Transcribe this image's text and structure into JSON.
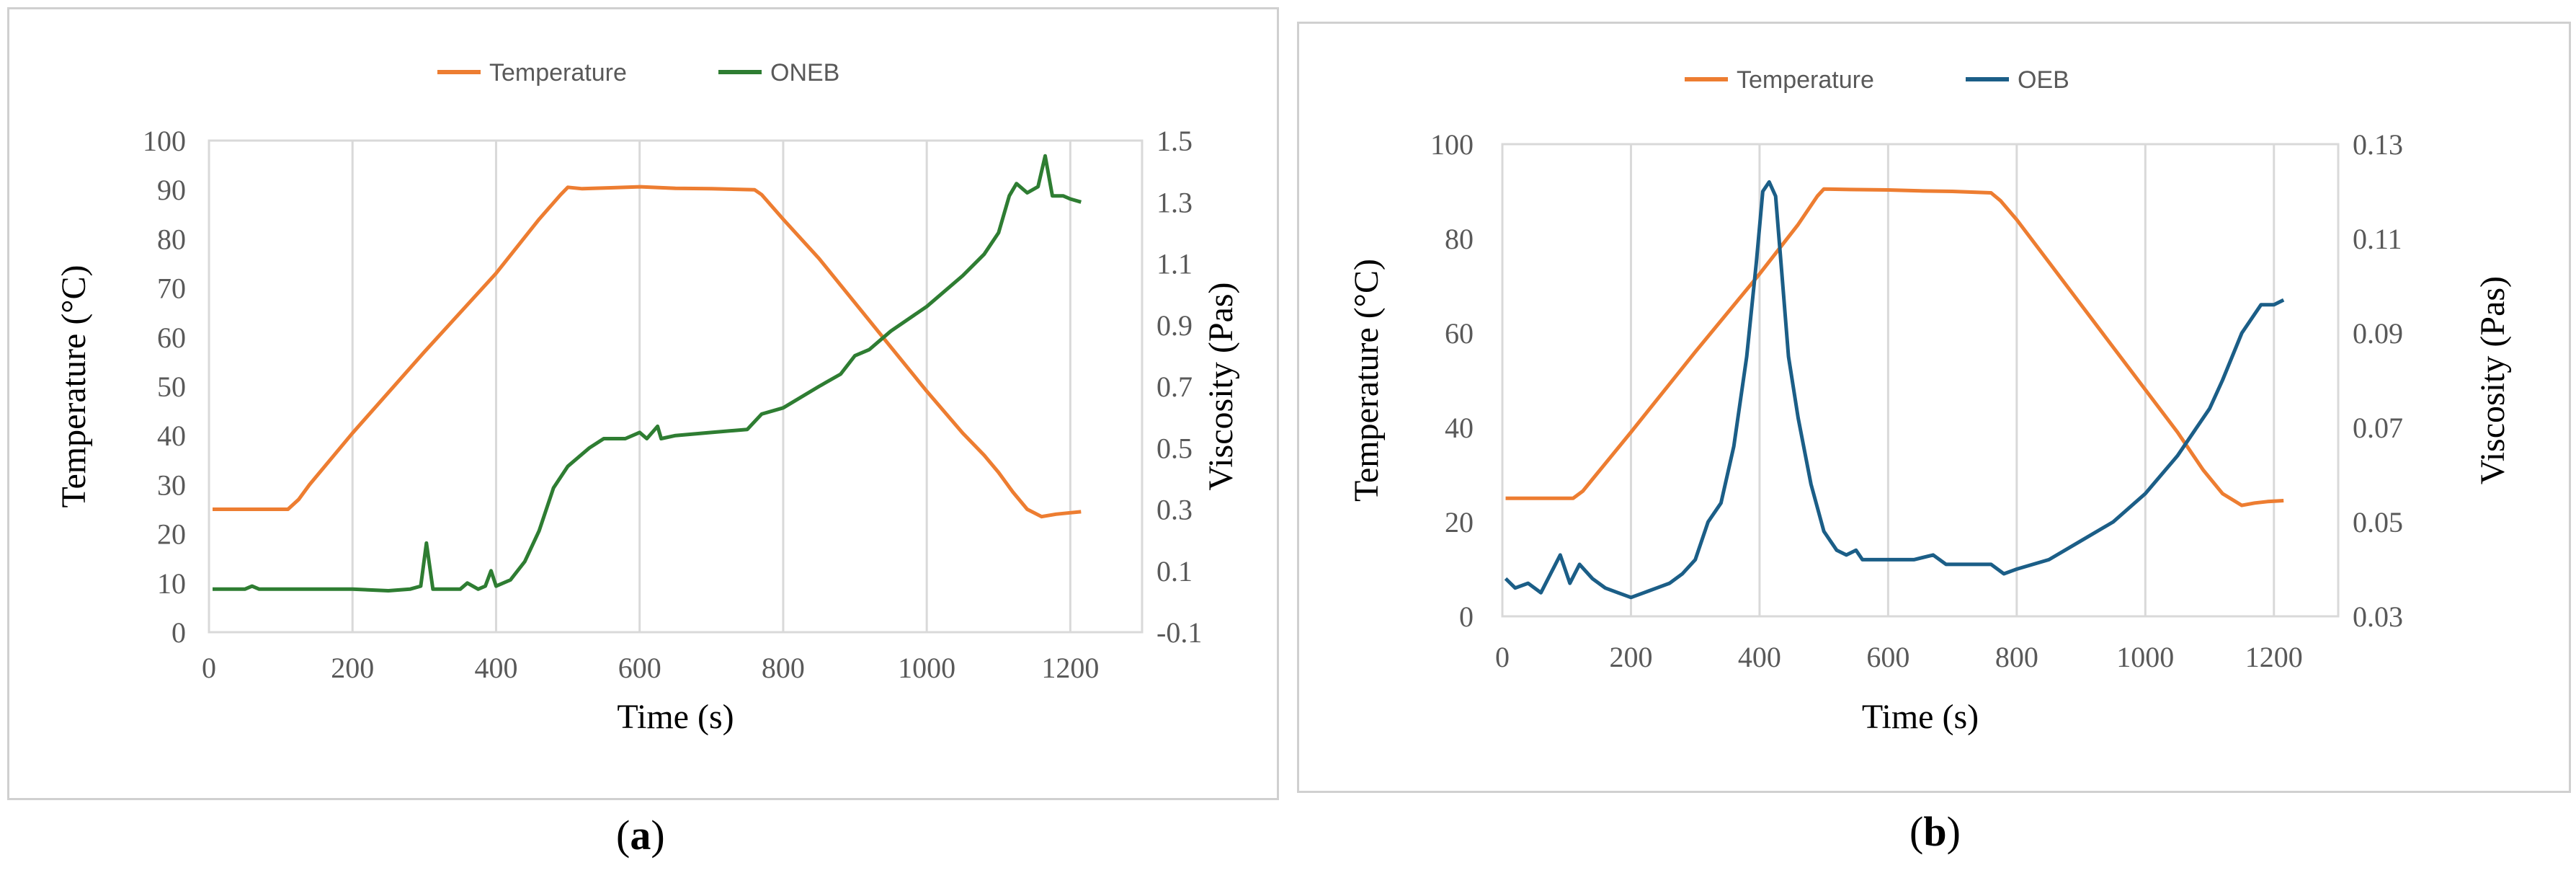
{
  "panels": [
    {
      "label": "a",
      "legend": [
        "Temperature",
        "ONEB"
      ],
      "colors": {
        "temperature": "#ED7D31",
        "viscosity": "#2E7D32"
      },
      "chart_data": {
        "type": "line",
        "xlabel": "Time (s)",
        "ylabel": "Temperature (°C)",
        "y2label": "Viscosity (Pas)",
        "xlim": [
          0,
          1300
        ],
        "ylim": [
          0,
          100
        ],
        "y2lim": [
          -0.1,
          1.5
        ],
        "xticks": [
          "0",
          "200",
          "400",
          "600",
          "800",
          "1000",
          "1200"
        ],
        "yticks": [
          "0",
          "10",
          "20",
          "30",
          "40",
          "50",
          "60",
          "70",
          "80",
          "90",
          "100"
        ],
        "y2ticks": [
          "-0.1",
          "0.1",
          "0.3",
          "0.5",
          "0.7",
          "0.9",
          "1.1",
          "1.3",
          "1.5"
        ],
        "grid": "vertical",
        "legend_position": "top-center",
        "series": [
          {
            "name": "Temperature",
            "axis": "left",
            "x": [
              5,
              60,
              110,
              125,
              140,
              200,
              300,
              400,
              460,
              490,
              500,
              520,
              560,
              600,
              650,
              700,
              760,
              770,
              800,
              850,
              900,
              950,
              1000,
              1050,
              1080,
              1100,
              1120,
              1140,
              1160,
              1180,
              1200,
              1215
            ],
            "y": [
              25,
              25,
              25,
              27,
              30,
              40.5,
              57,
              73,
              84,
              89,
              90.5,
              90.2,
              90.4,
              90.6,
              90.3,
              90.2,
              90,
              89,
              84,
              76,
              67,
              58,
              49,
              40.5,
              36,
              32.5,
              28.5,
              25,
              23.5,
              24,
              24.3,
              24.5
            ]
          },
          {
            "name": "ONEB",
            "axis": "right",
            "x": [
              5,
              50,
              60,
              70,
              100,
              150,
              200,
              250,
              280,
              295,
              303,
              312,
              330,
              350,
              360,
              375,
              385,
              393,
              400,
              420,
              440,
              460,
              480,
              500,
              530,
              550,
              580,
              600,
              610,
              625,
              630,
              650,
              700,
              750,
              770,
              800,
              850,
              880,
              900,
              920,
              950,
              1000,
              1050,
              1080,
              1100,
              1115,
              1125,
              1140,
              1155,
              1165,
              1175,
              1190,
              1200,
              1215
            ],
            "y": [
              0.04,
              0.04,
              0.05,
              0.04,
              0.04,
              0.04,
              0.04,
              0.035,
              0.04,
              0.05,
              0.19,
              0.04,
              0.04,
              0.04,
              0.06,
              0.04,
              0.05,
              0.1,
              0.05,
              0.07,
              0.13,
              0.23,
              0.37,
              0.44,
              0.5,
              0.53,
              0.53,
              0.55,
              0.53,
              0.57,
              0.53,
              0.54,
              0.55,
              0.56,
              0.61,
              0.63,
              0.7,
              0.74,
              0.8,
              0.82,
              0.88,
              0.96,
              1.06,
              1.13,
              1.2,
              1.32,
              1.36,
              1.33,
              1.35,
              1.45,
              1.32,
              1.32,
              1.31,
              1.3
            ]
          }
        ]
      }
    },
    {
      "label": "b",
      "legend": [
        "Temperature",
        "OEB"
      ],
      "colors": {
        "temperature": "#ED7D31",
        "viscosity": "#1B5E87"
      },
      "chart_data": {
        "type": "line",
        "xlabel": "Time (s)",
        "ylabel": "Temperature (°C)",
        "y2label": "Viscosity (Pas)",
        "xlim": [
          0,
          1300
        ],
        "ylim": [
          0,
          100
        ],
        "y2lim": [
          0.03,
          0.13
        ],
        "xticks": [
          "0",
          "200",
          "400",
          "600",
          "800",
          "1000",
          "1200"
        ],
        "yticks": [
          "0",
          "20",
          "40",
          "60",
          "80",
          "100"
        ],
        "y2ticks": [
          "0.03",
          "0.05",
          "0.07",
          "0.09",
          "0.11",
          "0.13"
        ],
        "grid": "vertical",
        "legend_position": "top-center",
        "series": [
          {
            "name": "Temperature",
            "axis": "left",
            "x": [
              5,
              60,
              110,
              125,
              140,
              200,
              300,
              400,
              460,
              490,
              500,
              540,
              600,
              650,
              700,
              760,
              775,
              800,
              850,
              900,
              950,
              1000,
              1050,
              1090,
              1120,
              1150,
              1170,
              1190,
              1215
            ],
            "y": [
              25,
              25,
              25,
              26.5,
              29,
              39,
              56,
              72.5,
              83,
              89,
              90.5,
              90.4,
              90.3,
              90.1,
              90,
              89.7,
              88,
              84,
              75,
              66,
              57,
              48,
              39,
              31,
              26,
              23.5,
              24,
              24.3,
              24.5
            ]
          },
          {
            "name": "OEB",
            "axis": "right",
            "x": [
              5,
              20,
              40,
              60,
              75,
              90,
              105,
              120,
              140,
              160,
              180,
              200,
              220,
              240,
              260,
              280,
              300,
              320,
              340,
              360,
              380,
              395,
              405,
              415,
              425,
              435,
              445,
              460,
              480,
              500,
              520,
              535,
              550,
              560,
              580,
              600,
              640,
              670,
              690,
              720,
              760,
              780,
              800,
              850,
              900,
              950,
              1000,
              1050,
              1100,
              1120,
              1150,
              1180,
              1200,
              1215
            ],
            "y": [
              0.038,
              0.036,
              0.037,
              0.035,
              0.039,
              0.043,
              0.037,
              0.041,
              0.038,
              0.036,
              0.035,
              0.034,
              0.035,
              0.036,
              0.037,
              0.039,
              0.042,
              0.05,
              0.054,
              0.066,
              0.085,
              0.105,
              0.12,
              0.122,
              0.119,
              0.102,
              0.085,
              0.072,
              0.058,
              0.048,
              0.044,
              0.043,
              0.044,
              0.042,
              0.042,
              0.042,
              0.042,
              0.043,
              0.041,
              0.041,
              0.041,
              0.039,
              0.04,
              0.042,
              0.046,
              0.05,
              0.056,
              0.064,
              0.074,
              0.08,
              0.09,
              0.096,
              0.096,
              0.097
            ]
          }
        ]
      }
    }
  ]
}
